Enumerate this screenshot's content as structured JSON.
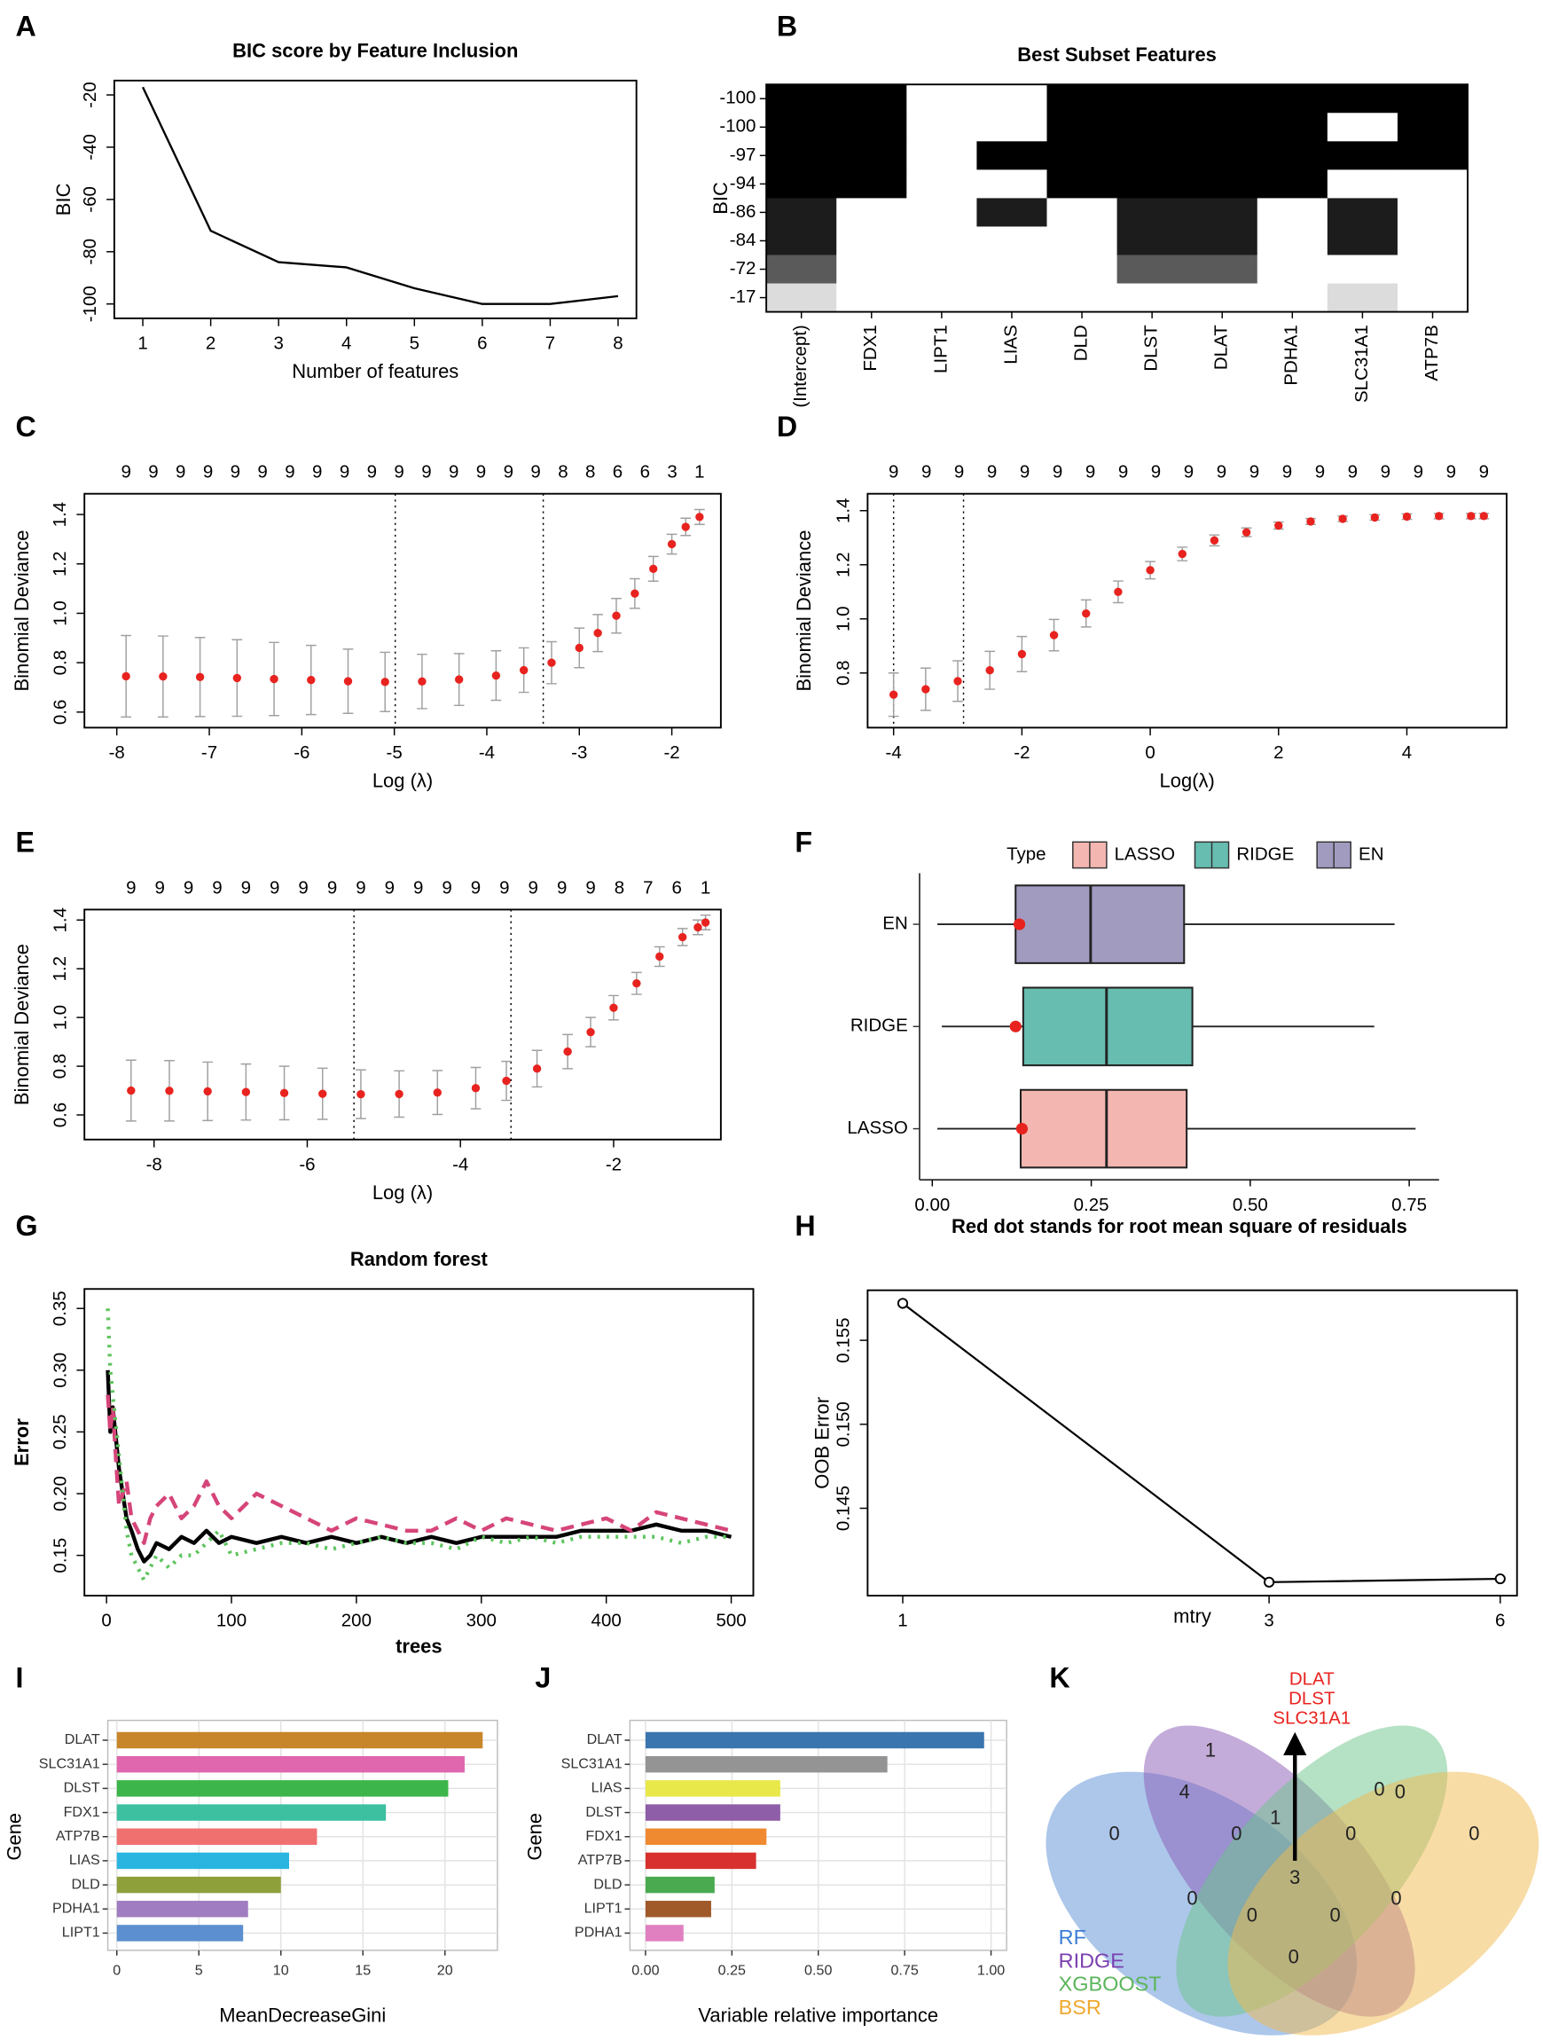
{
  "chart_data": [
    {
      "panel": "A",
      "type": "line",
      "title": "BIC score by Feature Inclusion",
      "xlabel": "Number of features",
      "ylabel": "BIC",
      "x": [
        1,
        2,
        3,
        4,
        5,
        6,
        7,
        8
      ],
      "series": [
        {
          "color": "#000000",
          "values": [
            -17,
            -72,
            -84,
            -86,
            -94,
            -100,
            -100,
            -97
          ]
        }
      ],
      "xlim": [
        0.58,
        8.27
      ],
      "ylim": [
        -105.5,
        -14.5
      ],
      "xticks": [
        1,
        2,
        3,
        4,
        5,
        6,
        7,
        8
      ],
      "yticks": [
        -100,
        -80,
        -60,
        -40,
        -20
      ]
    },
    {
      "panel": "B",
      "type": "heatmap",
      "title": "Best Subset Features",
      "ylabel": "BIC",
      "rows": [
        -100,
        -100,
        -97,
        -94,
        -86,
        -84,
        -72,
        -17
      ],
      "columns": [
        "(Intercept)",
        "FDX1",
        "LIPT1",
        "LIAS",
        "DLD",
        "DLST",
        "DLAT",
        "PDHA1",
        "SLC31A1",
        "ATP7B"
      ],
      "values": [
        [
          1,
          1,
          0,
          0,
          1,
          1,
          1,
          1,
          1,
          1
        ],
        [
          1,
          1,
          0,
          0,
          1,
          1,
          1,
          1,
          0,
          1
        ],
        [
          1,
          1,
          0,
          1,
          1,
          1,
          1,
          1,
          1,
          1
        ],
        [
          1,
          1,
          0,
          0,
          1,
          1,
          1,
          1,
          0,
          0
        ],
        [
          1,
          0,
          0,
          1,
          0,
          1,
          1,
          0,
          1,
          0
        ],
        [
          1,
          0,
          0,
          0,
          0,
          1,
          1,
          0,
          1,
          0
        ],
        [
          1,
          0,
          0,
          0,
          0,
          1,
          1,
          0,
          0,
          0
        ],
        [
          1,
          0,
          0,
          0,
          0,
          0,
          0,
          0,
          1,
          0
        ]
      ],
      "row_colors": [
        "#000000",
        "#000000",
        "#000000",
        "#000000",
        "#1c1c1c",
        "#1c1c1c",
        "#5a5a5a",
        "#dcdcdc"
      ]
    },
    {
      "panel": "C",
      "type": "cv_curve",
      "xlabel": "Log (λ)",
      "ylabel": "Binomial Deviance",
      "xlim": [
        -8.35,
        -1.47
      ],
      "ylim": [
        0.537,
        1.484
      ],
      "xticks": [
        -8,
        -7,
        -6,
        -5,
        -4,
        -3,
        -2
      ],
      "yticks": [
        0.6,
        0.8,
        {
          "value": 1,
          "label": "1.0"
        },
        1.2,
        1.4
      ],
      "x": [
        -7.9,
        -7.5,
        -7.1,
        -6.7,
        -6.3,
        -5.9,
        -5.5,
        -5.1,
        -4.7,
        -4.3,
        -3.9,
        -3.6,
        -3.3,
        -3.0,
        -2.8,
        -2.6,
        -2.4,
        -2.2,
        -2.0,
        -1.85,
        -1.7
      ],
      "values": [
        0.745,
        0.744,
        0.742,
        0.738,
        0.734,
        0.73,
        0.725,
        0.722,
        0.724,
        0.732,
        0.748,
        0.77,
        0.8,
        0.86,
        0.92,
        0.99,
        1.08,
        1.18,
        1.28,
        1.35,
        1.39
      ],
      "errors": [
        0.165,
        0.164,
        0.16,
        0.155,
        0.148,
        0.14,
        0.13,
        0.12,
        0.11,
        0.105,
        0.1,
        0.09,
        0.085,
        0.08,
        0.075,
        0.07,
        0.06,
        0.05,
        0.04,
        0.035,
        0.03
      ],
      "vlines": [
        -4.99,
        -3.39
      ],
      "top_labels": [
        9,
        9,
        9,
        9,
        9,
        9,
        9,
        9,
        9,
        9,
        9,
        9,
        9,
        9,
        9,
        9,
        8,
        8,
        6,
        6,
        3,
        1
      ],
      "point_color": "#e8231f",
      "error_color": "#a0a0a0"
    },
    {
      "panel": "D",
      "type": "cv_curve",
      "xlabel": "Log(λ)",
      "ylabel": "Binomial Deviance",
      "xlim": [
        -4.405,
        5.555
      ],
      "ylim": [
        0.598,
        1.4625
      ],
      "xticks": [
        -4,
        -2,
        0,
        2,
        4
      ],
      "yticks": [
        0.8,
        {
          "value": 1,
          "label": "1.0"
        },
        1.2,
        1.4
      ],
      "x": [
        -4.0,
        -3.5,
        -3.0,
        -2.5,
        -2.0,
        -1.5,
        -1.0,
        -0.5,
        0,
        0.5,
        1.0,
        1.5,
        2.0,
        2.5,
        3.0,
        3.5,
        4.0,
        4.5,
        5.0,
        5.2
      ],
      "values": [
        0.72,
        0.74,
        0.77,
        0.81,
        0.87,
        0.94,
        1.02,
        1.1,
        1.18,
        1.24,
        1.29,
        1.32,
        1.345,
        1.36,
        1.37,
        1.375,
        1.378,
        1.38,
        1.38,
        1.38
      ],
      "errors": [
        0.08,
        0.078,
        0.075,
        0.07,
        0.065,
        0.058,
        0.05,
        0.04,
        0.032,
        0.025,
        0.02,
        0.016,
        0.013,
        0.011,
        0.01,
        0.01,
        0.01,
        0.01,
        0.01,
        0.01
      ],
      "vlines": [
        -4.0,
        -2.91
      ],
      "top_labels": [
        9,
        9,
        9,
        9,
        9,
        9,
        9,
        9,
        9,
        9,
        9,
        9,
        9,
        9,
        9,
        9,
        9,
        9,
        9
      ],
      "point_color": "#e8231f",
      "error_color": "#a0a0a0"
    },
    {
      "panel": "E",
      "type": "cv_curve",
      "xlabel": "Log (λ)",
      "ylabel": "Binomial Deviance",
      "xlim": [
        -8.909,
        -0.6
      ],
      "ylim": [
        0.499,
        1.443
      ],
      "xticks": [
        -8,
        -6,
        -4,
        -2
      ],
      "yticks": [
        0.6,
        0.8,
        {
          "value": 1,
          "label": "1.0"
        },
        1.2,
        1.4
      ],
      "x": [
        -8.3,
        -7.8,
        -7.3,
        -6.8,
        -6.3,
        -5.8,
        -5.3,
        -4.8,
        -4.3,
        -3.8,
        -3.4,
        -3.0,
        -2.6,
        -2.3,
        -2.0,
        -1.7,
        -1.4,
        -1.1,
        -0.9,
        -0.8
      ],
      "values": [
        0.7,
        0.699,
        0.697,
        0.694,
        0.69,
        0.687,
        0.685,
        0.686,
        0.692,
        0.71,
        0.74,
        0.79,
        0.86,
        0.94,
        1.04,
        1.14,
        1.25,
        1.33,
        1.37,
        1.39
      ],
      "errors": [
        0.125,
        0.124,
        0.12,
        0.115,
        0.11,
        0.105,
        0.1,
        0.095,
        0.09,
        0.085,
        0.08,
        0.075,
        0.07,
        0.06,
        0.05,
        0.045,
        0.04,
        0.035,
        0.03,
        0.03
      ],
      "vlines": [
        -5.39,
        -3.34
      ],
      "top_labels": [
        9,
        9,
        9,
        9,
        9,
        9,
        9,
        9,
        9,
        9,
        9,
        9,
        9,
        9,
        9,
        9,
        9,
        8,
        7,
        6,
        1
      ],
      "point_color": "#e8231f",
      "error_color": "#a0a0a0"
    },
    {
      "panel": "F",
      "type": "box",
      "xlabel": "Red dot stands for root mean square of residuals",
      "legend_title": "Type",
      "categories": [
        "LASSO",
        "RIDGE",
        "EN"
      ],
      "colors": [
        "#f4b6b0",
        "#66bdb0",
        "#a29bc0"
      ],
      "boxes": [
        {
          "min": 0.008,
          "q1": 0.139,
          "median": 0.274,
          "q3": 0.4,
          "max": 0.76,
          "rmse": 0.141
        },
        {
          "min": 0.015,
          "q1": 0.143,
          "median": 0.274,
          "q3": 0.409,
          "max": 0.695,
          "rmse": 0.131
        },
        {
          "min": 0.008,
          "q1": 0.131,
          "median": 0.249,
          "q3": 0.396,
          "max": 0.727,
          "rmse": 0.137
        }
      ],
      "point_color": "#e8231f",
      "xlim": [
        -0.02,
        0.797
      ],
      "xticks": [
        {
          "value": 0,
          "label": "0.00"
        },
        0.25,
        {
          "value": 0.5,
          "label": "0.50"
        },
        0.75
      ],
      "legend": "top"
    },
    {
      "panel": "G",
      "type": "line",
      "title": "Random forest",
      "xlabel": "trees",
      "ylabel": "Error",
      "x": [
        1,
        3,
        5,
        8,
        10,
        13,
        16,
        20,
        25,
        30,
        35,
        40,
        50,
        60,
        70,
        80,
        90,
        100,
        120,
        140,
        160,
        180,
        200,
        220,
        240,
        260,
        280,
        300,
        320,
        340,
        360,
        380,
        400,
        420,
        440,
        460,
        480,
        500
      ],
      "series": [
        {
          "color": "#000000",
          "width": 3,
          "values": [
            0.3,
            0.25,
            0.27,
            0.24,
            0.22,
            0.2,
            0.18,
            0.17,
            0.155,
            0.145,
            0.15,
            0.16,
            0.155,
            0.165,
            0.16,
            0.17,
            0.16,
            0.165,
            0.16,
            0.165,
            0.16,
            0.165,
            0.16,
            0.165,
            0.16,
            0.165,
            0.16,
            0.165,
            0.165,
            0.165,
            0.165,
            0.17,
            0.17,
            0.17,
            0.175,
            0.17,
            0.17,
            0.165
          ]
        },
        {
          "color": "#d6457a",
          "width": 3,
          "dash": "dashed",
          "values": [
            0.28,
            0.25,
            0.27,
            0.22,
            0.19,
            0.2,
            0.21,
            0.18,
            0.17,
            0.16,
            0.18,
            0.19,
            0.2,
            0.18,
            0.19,
            0.21,
            0.19,
            0.18,
            0.2,
            0.19,
            0.18,
            0.17,
            0.18,
            0.175,
            0.17,
            0.17,
            0.18,
            0.17,
            0.18,
            0.175,
            0.17,
            0.175,
            0.18,
            0.17,
            0.185,
            0.18,
            0.175,
            0.17
          ]
        },
        {
          "color": "#5ec45e",
          "width": 3,
          "dash": "dotted",
          "values": [
            0.35,
            0.3,
            0.28,
            0.25,
            0.23,
            0.2,
            0.17,
            0.15,
            0.14,
            0.13,
            0.14,
            0.15,
            0.14,
            0.15,
            0.15,
            0.16,
            0.17,
            0.15,
            0.155,
            0.16,
            0.16,
            0.155,
            0.16,
            0.165,
            0.16,
            0.16,
            0.155,
            0.165,
            0.16,
            0.165,
            0.16,
            0.165,
            0.165,
            0.165,
            0.165,
            0.16,
            0.165,
            0.165
          ]
        }
      ],
      "xlim": [
        -17.7,
        517.7
      ],
      "ylim": [
        0.1174,
        0.3658
      ],
      "xticks": [
        0,
        100,
        200,
        300,
        400,
        500
      ],
      "yticks": [
        0.15,
        {
          "value": 0.2,
          "label": "0.20"
        },
        0.25,
        {
          "value": 0.3,
          "label": "0.30"
        },
        0.35
      ]
    },
    {
      "panel": "H",
      "type": "line",
      "xlabel": "mtry",
      "ylabel": "OOB Error",
      "x": [
        1,
        3,
        6
      ],
      "series": [
        {
          "color": "#000000",
          "width": 1.5,
          "values": [
            0.1572,
            0.1406,
            0.1408
          ]
        }
      ],
      "markers": true,
      "xlog": true,
      "xlim": [
        0.9,
        6.31
      ],
      "ylim": [
        0.1398,
        0.15798
      ],
      "xticks": [
        1,
        3,
        6
      ],
      "yticks": [
        0.145,
        {
          "value": 0.15,
          "label": "0.150"
        },
        0.155
      ]
    },
    {
      "panel": "I",
      "type": "bar",
      "xlabel": "MeanDecreaseGini",
      "ylabel": "Gene",
      "categories": [
        "DLAT",
        "SLC31A1",
        "DLST",
        "FDX1",
        "ATP7B",
        "LIAS",
        "DLD",
        "PDHA1",
        "LIPT1"
      ],
      "values": [
        22.3,
        21.2,
        20.2,
        16.4,
        12.2,
        10.5,
        10.0,
        8.0,
        7.7
      ],
      "colors": [
        "#c8862a",
        "#e066ad",
        "#3cb54a",
        "#3cc0a0",
        "#f07070",
        "#29b5e0",
        "#8ea03a",
        "#a07cc0",
        "#5b8fd0"
      ],
      "xlim": [
        -0.55,
        23.2
      ],
      "xticks": [
        0,
        5,
        10,
        15,
        20
      ],
      "grid": true
    },
    {
      "panel": "J",
      "type": "bar",
      "xlabel": "Variable relative importance",
      "ylabel": "Gene",
      "categories": [
        "DLAT",
        "SLC31A1",
        "LIAS",
        "DLST",
        "FDX1",
        "ATP7B",
        "DLD",
        "LIPT1",
        "PDHA1"
      ],
      "values": [
        0.98,
        0.7,
        0.39,
        0.39,
        0.35,
        0.32,
        0.2,
        0.19,
        0.11
      ],
      "colors": [
        "#3b75af",
        "#949494",
        "#e8e84a",
        "#8e5ea8",
        "#f08a30",
        "#d8302e",
        "#4aaa50",
        "#a05a2a",
        "#e080c0"
      ],
      "xlim": [
        -0.0451,
        1.045
      ],
      "xticks": [
        {
          "value": 0,
          "label": "0.00"
        },
        0.25,
        {
          "value": 0.5,
          "label": "0.50"
        },
        0.75,
        {
          "value": 1,
          "label": "1.00"
        }
      ],
      "grid": true
    },
    {
      "panel": "K",
      "type": "venn",
      "sets": [
        {
          "name": "RF",
          "color": "#5a8fd6",
          "label_color": "#3b7dd8"
        },
        {
          "name": "RIDGE",
          "color": "#8a5ab5",
          "label_color": "#7b3fb0"
        },
        {
          "name": "XGBOOST",
          "color": "#6cc48a",
          "label_color": "#5ab55a"
        },
        {
          "name": "BSR",
          "color": "#f2b94e",
          "label_color": "#f0a830"
        }
      ],
      "regions": [
        1,
        0,
        0,
        4,
        1,
        0,
        0,
        0,
        0,
        3,
        0,
        0,
        0,
        0,
        0
      ],
      "annotation": [
        "DLAT",
        "DLST",
        "SLC31A1"
      ],
      "annotation_color": "#e8231f"
    }
  ]
}
